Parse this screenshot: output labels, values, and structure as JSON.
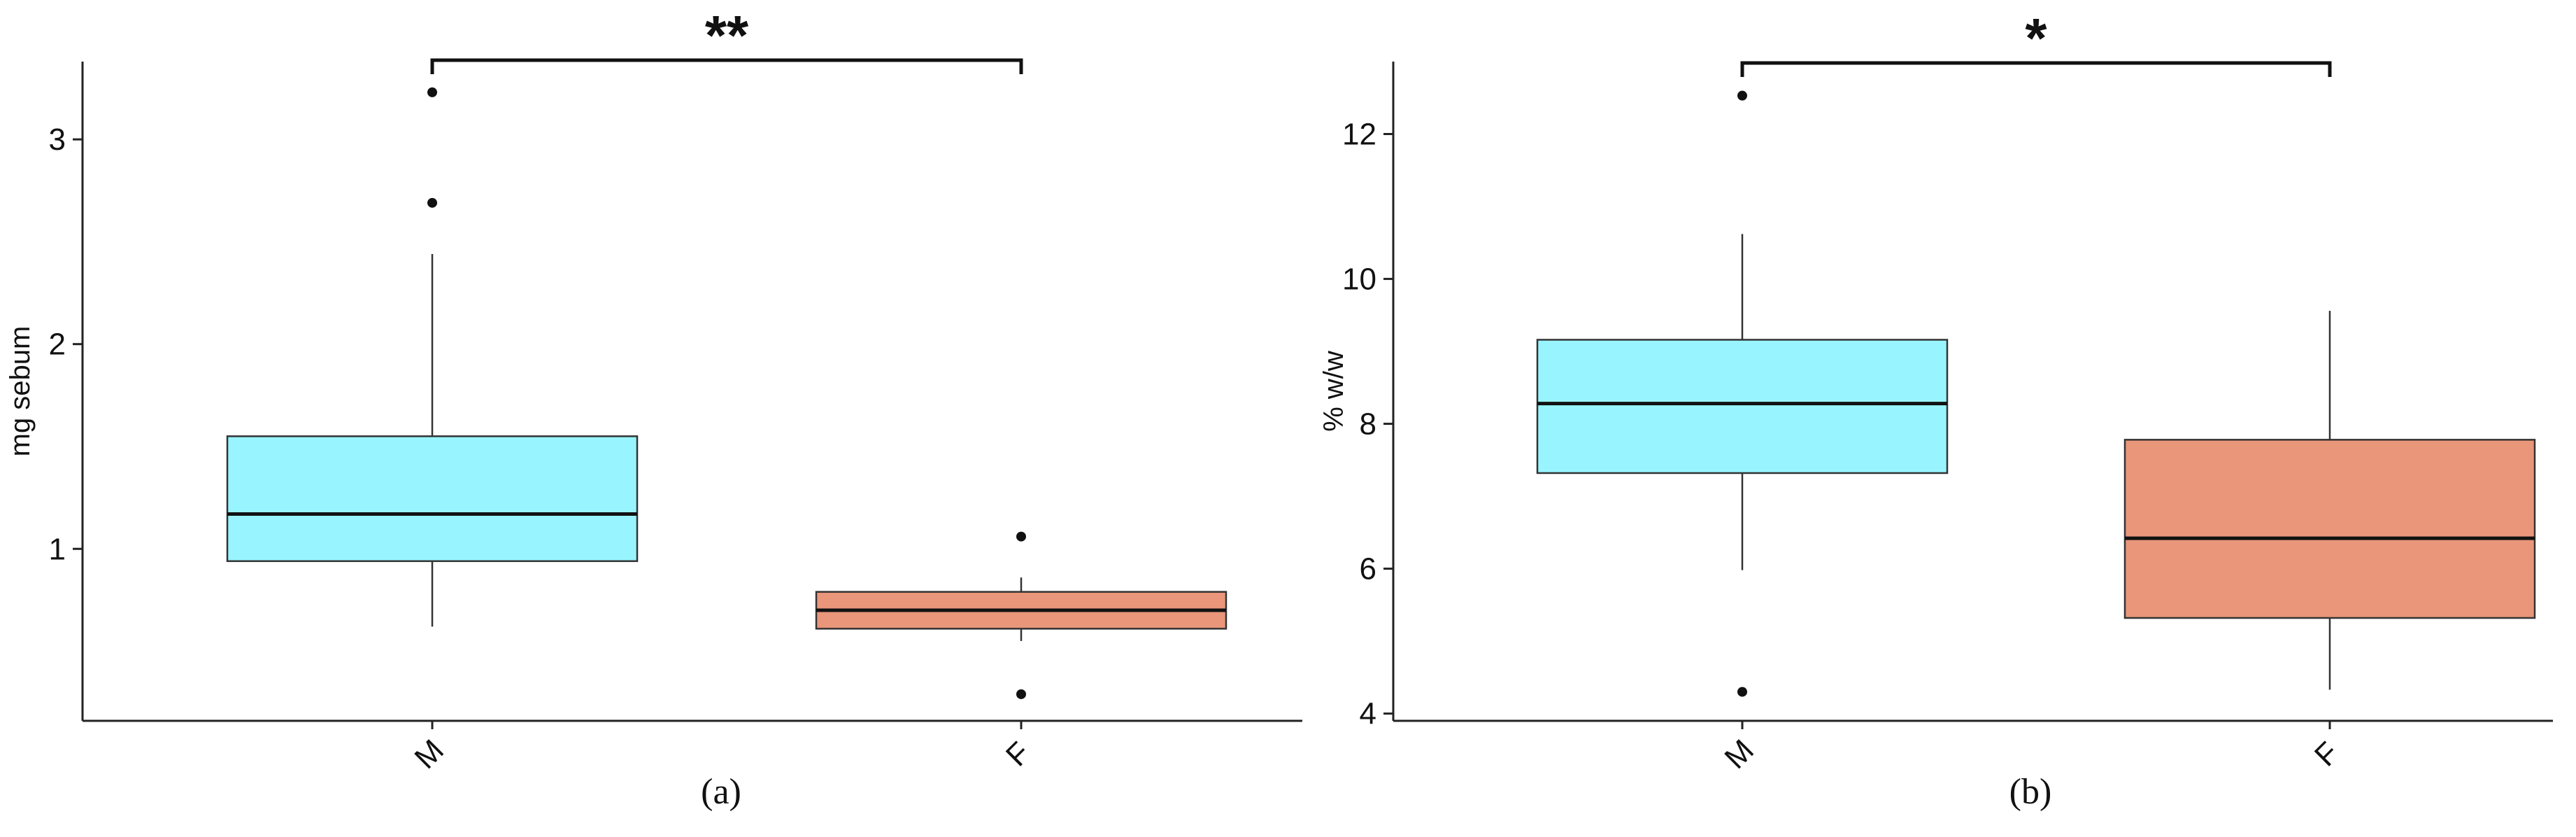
{
  "chart_data": [
    {
      "type": "box",
      "caption": "(a)",
      "ylabel": "mg sebum",
      "xlabel": "",
      "ylim": [
        0.16,
        3.38
      ],
      "yticks": [
        1,
        2,
        3
      ],
      "categories": [
        "M",
        "F"
      ],
      "colors": [
        "#98F5FF",
        "#E9967A"
      ],
      "boxes": [
        {
          "category": "M",
          "whisker_low": 0.62,
          "q1": 0.94,
          "median": 1.17,
          "q3": 1.55,
          "whisker_high": 2.44,
          "outliers": [
            2.69,
            3.23
          ]
        },
        {
          "category": "F",
          "whisker_low": 0.55,
          "q1": 0.61,
          "median": 0.7,
          "q3": 0.79,
          "whisker_high": 0.86,
          "outliers": [
            1.06,
            0.29
          ]
        }
      ],
      "significance": {
        "label": "**",
        "between": [
          "M",
          "F"
        ]
      },
      "grid": false,
      "legend": "none"
    },
    {
      "type": "box",
      "caption": "(b)",
      "ylabel": "% w/w",
      "xlabel": "",
      "ylim": [
        3.9,
        13.0
      ],
      "yticks": [
        4,
        6,
        8,
        10,
        12
      ],
      "categories": [
        "M",
        "F"
      ],
      "colors": [
        "#98F5FF",
        "#E9967A"
      ],
      "boxes": [
        {
          "category": "M",
          "whisker_low": 5.98,
          "q1": 7.32,
          "median": 8.28,
          "q3": 9.16,
          "whisker_high": 10.62,
          "outliers": [
            4.3,
            12.53
          ]
        },
        {
          "category": "F",
          "whisker_low": 4.33,
          "q1": 5.32,
          "median": 6.42,
          "q3": 7.78,
          "whisker_high": 9.56,
          "outliers": []
        }
      ],
      "significance": {
        "label": "*",
        "between": [
          "M",
          "F"
        ]
      },
      "grid": false,
      "legend": "none"
    }
  ]
}
